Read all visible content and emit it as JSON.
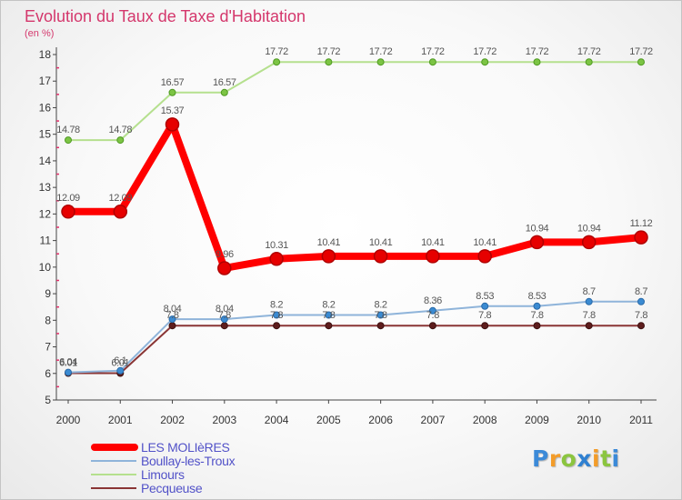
{
  "chart_data": {
    "type": "line",
    "title": "Evolution du Taux de Taxe d'Habitation",
    "subtitle": "(en %)",
    "x": [
      2000,
      2001,
      2002,
      2003,
      2004,
      2005,
      2006,
      2007,
      2008,
      2009,
      2010,
      2011
    ],
    "ylim": [
      5,
      18
    ],
    "yticks": [
      5,
      6,
      7,
      8,
      9,
      10,
      11,
      12,
      13,
      14,
      15,
      16,
      17,
      18
    ],
    "grid": false,
    "legend": "bottom-left",
    "series": [
      {
        "name": "LES MOLIèRES",
        "color": "#ff0000",
        "marker_color": "#e60000",
        "marker_stroke": "#b00000",
        "values": [
          12.09,
          12.09,
          15.37,
          9.96,
          10.31,
          10.41,
          10.41,
          10.41,
          10.41,
          10.94,
          10.94,
          11.12
        ]
      },
      {
        "name": "Boullay-les-Troux",
        "color": "#8fb4da",
        "marker_color": "#3b8bd2",
        "marker_stroke": "#2a6aa8",
        "values": [
          6.04,
          6.1,
          8.04,
          8.04,
          8.2,
          8.2,
          8.2,
          8.36,
          8.53,
          8.53,
          8.7,
          8.7
        ]
      },
      {
        "name": "Limours",
        "color": "#b5e08e",
        "marker_color": "#7cc444",
        "marker_stroke": "#4f9a22",
        "values": [
          14.78,
          14.78,
          16.57,
          16.57,
          17.72,
          17.72,
          17.72,
          17.72,
          17.72,
          17.72,
          17.72,
          17.72
        ]
      },
      {
        "name": "Pecqueuse",
        "color": "#8a3535",
        "marker_color": "#5e1d1d",
        "marker_stroke": "#3d1010",
        "values": [
          6.01,
          6.01,
          7.8,
          7.8,
          7.8,
          7.8,
          7.8,
          7.8,
          7.8,
          7.8,
          7.8,
          7.8
        ]
      }
    ]
  },
  "logo": {
    "text": "Proxiti",
    "colors": [
      "#3b8ad8",
      "#f39c29",
      "#8bc53f",
      "#2f80d1",
      "#f39c29",
      "#8bc53f",
      "#3b8ad8"
    ]
  }
}
